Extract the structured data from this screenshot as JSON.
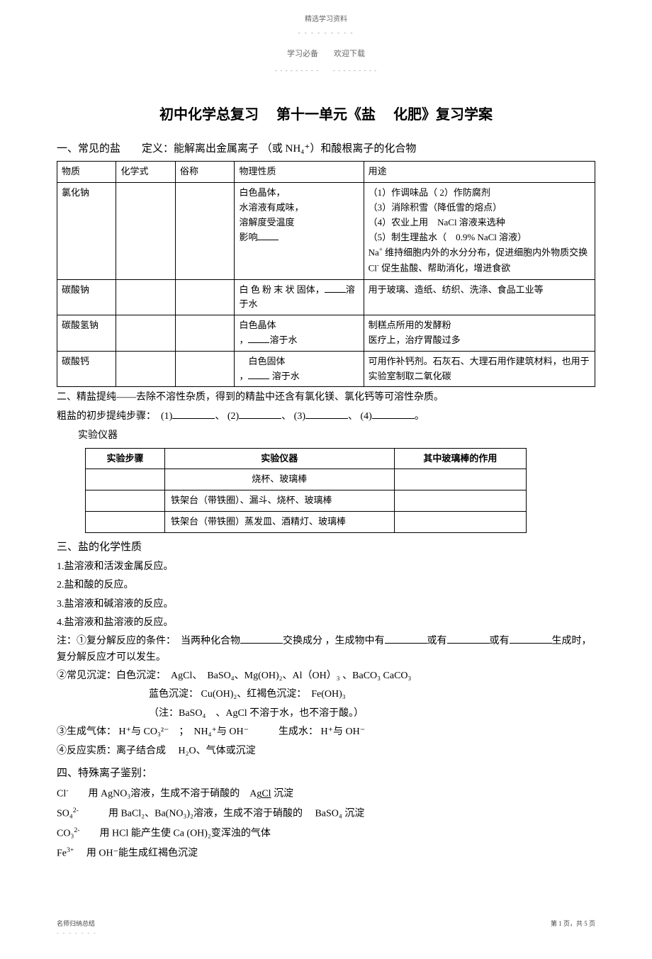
{
  "header": {
    "top_label": "精选学习资料",
    "top_dots": "- - - - - - - - -",
    "sub_header_left": "学习必备",
    "sub_header_right": "欢迎下载",
    "sub_dashed": "- - - - - - - - -　　- - - - - - - - -"
  },
  "title": "初中化学总复习　 第十一单元《盐　 化肥》复习学案",
  "section1_heading": "一、常见的盐　　定义：能解离出金属离子 （或 NH₄⁺）和酸根离子的化合物",
  "table1": {
    "headers": [
      "物质",
      "化学式",
      "俗称",
      "物理性质",
      "用途"
    ],
    "rows": [
      {
        "substance": "氯化钠",
        "formula": "",
        "common": "",
        "physical": "白色晶体，\n水溶液有咸味，\n溶解度受温度\n影响",
        "use": "（1）作调味品（ 2）作防腐剂\n（3）消除积雪（降低雪的熔点）\n（4）农业上用　NaCl 溶液来选种\n（5）制生理盐水（　0.9% NaCl 溶液）\nNa⁺ 维持细胞内外的水分分布，促进细胞内外物质交换\nCl⁻ 促生盐酸、帮助消化，增进食欲"
      },
      {
        "substance": "碳酸钠",
        "formula": "",
        "common": "",
        "physical": "白 色 粉 末 状 固体，　溶于水",
        "use": "用于玻璃、造纸、纺织、洗涤、食品工业等"
      },
      {
        "substance": "碳酸氢钠",
        "formula": "",
        "common": "",
        "physical": "白色晶体\n，　溶于水",
        "use": "制糕点所用的发酵粉\n医疗上，治疗胃酸过多"
      },
      {
        "substance": "碳酸钙",
        "formula": "",
        "common": "",
        "physical": "　白色固体\n，　 溶于水",
        "use": "可用作补钙剂。石灰石、大理石用作建筑材料，也用于实验室制取二氧化碳"
      }
    ]
  },
  "section2": {
    "line1": "二、精盐提纯——去除不溶性杂质，得到的精盐中还含有氯化镁、氯化钙等可溶性杂质。",
    "line2_prefix": "粗盐的初步提纯步骤：　(1)",
    "line2_mid1": "、 (2)",
    "line2_mid2": "、 (3)",
    "line2_mid3": "、 (4)",
    "line2_end": "。",
    "experiment_label": "实验仪器"
  },
  "table2": {
    "headers": [
      "实验步骤",
      "实验仪器",
      "其中玻璃棒的作用"
    ],
    "rows": [
      [
        "",
        "烧杯、玻璃棒",
        ""
      ],
      [
        "",
        "铁架台（带铁圈）、漏斗、烧杯、玻璃棒",
        ""
      ],
      [
        "",
        "铁架台（带铁圈）蒸发皿、酒精灯、玻璃棒",
        ""
      ]
    ]
  },
  "section3_heading": "三、盐的化学性质",
  "section3": {
    "l1": "1.盐溶液和活泼金属反应。",
    "l2": "2.盐和酸的反应。",
    "l3": "3.盐溶液和碱溶液的反应。",
    "l4": "4.盐溶液和盐溶液的反应。",
    "note1_prefix": "注：①复分解反应的条件：　当两种化合物",
    "note1_mid1": "交换成分 ，生成物中有",
    "note1_mid2": "或有",
    "note1_mid3": "或有",
    "note1_end": "生成时，复分解反应才可以发生。",
    "note2": "②常见沉淀：白色沉淀：　AgCl、　BaSO₄、Mg(OH)₂、Al（OH）₃ 、BaCO₃   CaCO₃",
    "note2b": "蓝色沉淀： Cu(OH)₂、红褐色沉淀：　Fe(OH)₃",
    "note2c": "（注：BaSO₄　、AgCl 不溶于水，也不溶于酸。）",
    "note3": "③生成气体： H⁺与 CO₃²⁻　；　NH₄⁺与 OH⁻　　　生成水： H⁺与 OH⁻",
    "note4": "④反应实质：离子结合成　 H₂O、气体或沉淀"
  },
  "section4_heading": "四、特殊离子鉴别：",
  "section4": {
    "cl": "Cl⁻　　用 AgNO₃溶液，生成不溶于硝酸的　AgCl 沉淀",
    "so4": "SO₄²⁻　　　用 BaCl₂、Ba(NO₃)₂溶液，生成不溶于硝酸的　 BaSO₄ 沉淀",
    "co3": "CO₃²⁻　　用 HCl 能产生使 Ca (OH)₂变浑浊的气体",
    "fe3": "Fe³⁺　 用 OH⁻能生成红褐色沉淀"
  },
  "footer": {
    "left": "名师归纳总结",
    "left_dots": "- - - - - - -",
    "right": "第 1 页，共 5 页"
  }
}
